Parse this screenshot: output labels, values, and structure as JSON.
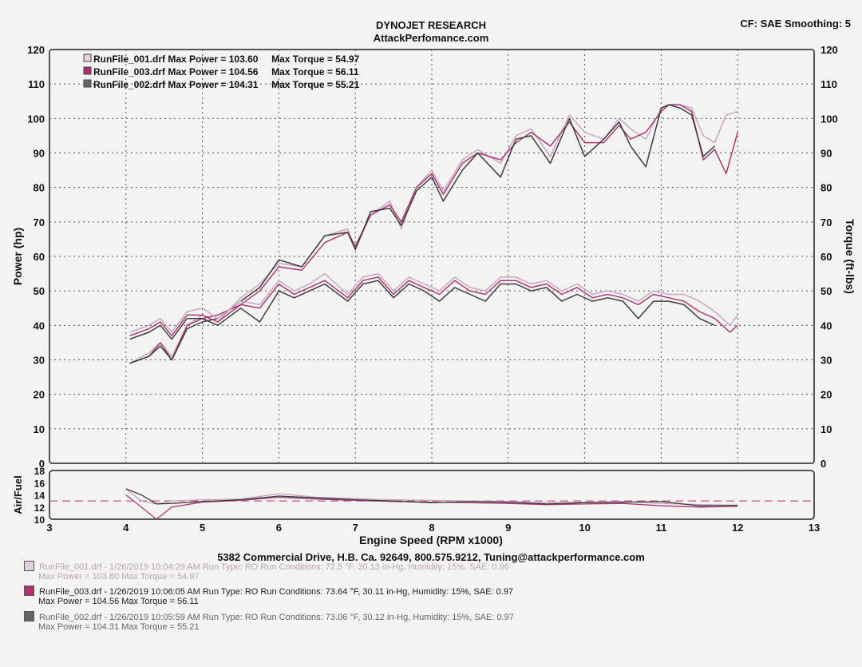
{
  "header": {
    "title": "DYNOJET RESEARCH",
    "subtitle": "AttackPerfomance.com",
    "settings": "CF: SAE  Smoothing: 5"
  },
  "footer": {
    "address": "5382 Commercial Drive, H.B. Ca. 92649, 800.575.9212, Tuning@attackperformance.com"
  },
  "runs": [
    {
      "line1": "RunFile_001.drf - 1/26/2019 10:04:29 AM  Run Type: RO  Run Conditions: 72.5 °F, 30.13 in-Hg,  Humidity:  15%, SAE: 0.96",
      "line2": "Max Power = 103.60  Max Torque = 54.97",
      "color": "#d8b4d0"
    },
    {
      "line1": "RunFile_003.drf - 1/26/2019 10:06:05 AM  Run Type: RO  Run Conditions: 73.64 °F, 30.11 in-Hg,  Humidity:  15%, SAE: 0.97",
      "line2": "Max Power = 104.56  Max Torque = 56.11",
      "color": "#b0306e"
    },
    {
      "line1": "RunFile_002.drf - 1/26/2019 10:05:59 AM  Run Type: RO  Run Conditions: 73.06 °F, 30.12 in-Hg,  Humidity:  15%, SAE: 0.97",
      "line2": "Max Power = 104.31  Max Torque = 55.21",
      "color": "#555555"
    }
  ],
  "chart_data": [
    {
      "type": "line",
      "title": "",
      "xlabel": "Engine Speed (RPM x1000)",
      "ylabel": "Power (hp)",
      "y2label": "Torque (ft-lbs)",
      "xlim": [
        3,
        13
      ],
      "ylim": [
        0,
        120
      ],
      "y2lim": [
        0,
        120
      ],
      "xticks": [
        3,
        4,
        5,
        6,
        7,
        8,
        9,
        10,
        11,
        12,
        13
      ],
      "yticks": [
        0,
        10,
        20,
        30,
        40,
        50,
        60,
        70,
        80,
        90,
        100,
        110,
        120
      ],
      "grid": true,
      "legend_position": "top-left",
      "legend": [
        "RunFile_001.drf Max Power = 103.60     Max Torque = 54.97",
        "RunFile_003.drf Max Power = 104.56     Max Torque = 56.11",
        "RunFile_002.drf Max Power = 104.31     Max Torque = 55.21"
      ],
      "series": [
        {
          "name": "RunFile_001.drf Power",
          "color": "#c9a6c4",
          "x": [
            4.05,
            4.3,
            4.45,
            4.6,
            4.8,
            5.0,
            5.2,
            5.5,
            5.75,
            6.0,
            6.3,
            6.6,
            6.9,
            7.0,
            7.2,
            7.45,
            7.6,
            7.8,
            8.0,
            8.15,
            8.4,
            8.6,
            8.9,
            9.1,
            9.3,
            9.55,
            9.8,
            10.0,
            10.25,
            10.45,
            10.6,
            10.8,
            11.0,
            11.1,
            11.25,
            11.4,
            11.55,
            11.7,
            11.85,
            12.0
          ],
          "y": [
            29,
            32,
            35,
            31,
            40,
            43,
            41,
            48,
            52,
            58,
            57,
            66,
            68,
            62,
            72,
            76,
            68,
            80,
            85,
            79,
            88,
            91,
            87,
            95,
            97,
            89,
            101,
            96,
            94,
            100,
            97,
            94,
            103,
            104,
            104,
            103,
            95,
            93,
            101,
            102
          ]
        },
        {
          "name": "RunFile_003.drf Power",
          "color": "#a83a76",
          "x": [
            4.05,
            4.3,
            4.45,
            4.6,
            4.8,
            5.0,
            5.2,
            5.5,
            5.75,
            6.0,
            6.3,
            6.6,
            6.9,
            7.0,
            7.2,
            7.45,
            7.6,
            7.8,
            8.0,
            8.15,
            8.4,
            8.6,
            8.9,
            9.1,
            9.3,
            9.55,
            9.8,
            10.0,
            10.25,
            10.45,
            10.6,
            10.8,
            11.0,
            11.1,
            11.25,
            11.4,
            11.55,
            11.7,
            11.85,
            12.0
          ],
          "y": [
            29,
            31,
            35,
            30,
            40,
            42,
            43,
            46,
            50,
            57,
            56,
            64,
            67,
            63,
            72,
            75,
            70,
            80,
            84,
            78,
            87,
            90,
            88,
            93,
            96,
            92,
            99,
            93,
            93,
            98,
            94,
            96,
            102,
            104,
            104,
            102,
            88,
            91,
            84,
            96
          ]
        },
        {
          "name": "RunFile_002.drf Power",
          "color": "#3d3d3d",
          "x": [
            4.05,
            4.3,
            4.45,
            4.6,
            4.8,
            5.0,
            5.2,
            5.5,
            5.75,
            6.0,
            6.3,
            6.6,
            6.9,
            7.0,
            7.2,
            7.45,
            7.6,
            7.8,
            8.0,
            8.15,
            8.4,
            8.6,
            8.9,
            9.1,
            9.3,
            9.55,
            9.8,
            10.0,
            10.25,
            10.45,
            10.6,
            10.8,
            11.0,
            11.1,
            11.25,
            11.4,
            11.55,
            11.7
          ],
          "y": [
            29,
            31,
            34,
            30,
            39,
            41,
            42,
            47,
            51,
            59,
            57,
            66,
            67,
            62,
            73,
            74,
            69,
            79,
            83,
            76,
            85,
            90,
            83,
            94,
            95,
            87,
            100,
            89,
            94,
            99,
            92,
            86,
            103,
            104,
            103,
            101,
            89,
            92
          ]
        },
        {
          "name": "RunFile_001.drf Torque",
          "color": "#c9a6c4",
          "x": [
            4.05,
            4.3,
            4.45,
            4.6,
            4.8,
            5.0,
            5.2,
            5.5,
            5.75,
            6.0,
            6.2,
            6.4,
            6.6,
            6.9,
            7.1,
            7.3,
            7.5,
            7.7,
            7.9,
            8.1,
            8.3,
            8.5,
            8.7,
            8.9,
            9.1,
            9.3,
            9.5,
            9.7,
            9.9,
            10.1,
            10.3,
            10.5,
            10.7,
            10.9,
            11.1,
            11.3,
            11.5,
            11.7,
            11.9,
            12.0
          ],
          "y": [
            38,
            40,
            42,
            38,
            44,
            45,
            42,
            47,
            46,
            53,
            50,
            52,
            55,
            49,
            54,
            55,
            50,
            54,
            52,
            50,
            54,
            51,
            50,
            54,
            54,
            52,
            53,
            50,
            52,
            49,
            50,
            49,
            47,
            50,
            49,
            49,
            47,
            44,
            40,
            43
          ]
        },
        {
          "name": "RunFile_003.drf Torque",
          "color": "#a83a76",
          "x": [
            4.05,
            4.3,
            4.45,
            4.6,
            4.8,
            5.0,
            5.2,
            5.5,
            5.75,
            6.0,
            6.2,
            6.4,
            6.6,
            6.9,
            7.1,
            7.3,
            7.5,
            7.7,
            7.9,
            8.1,
            8.3,
            8.5,
            8.7,
            8.9,
            9.1,
            9.3,
            9.5,
            9.7,
            9.9,
            10.1,
            10.3,
            10.5,
            10.7,
            10.9,
            11.1,
            11.3,
            11.5,
            11.7,
            11.9,
            12.0
          ],
          "y": [
            37,
            39,
            41,
            37,
            43,
            43,
            41,
            46,
            45,
            52,
            49,
            51,
            53,
            48,
            53,
            54,
            49,
            53,
            51,
            49,
            53,
            50,
            49,
            53,
            53,
            51,
            52,
            49,
            51,
            48,
            49,
            48,
            46,
            49,
            48,
            47,
            44,
            42,
            38,
            40
          ]
        },
        {
          "name": "RunFile_002.drf Torque",
          "color": "#3d3d3d",
          "x": [
            4.05,
            4.3,
            4.45,
            4.6,
            4.8,
            5.0,
            5.2,
            5.5,
            5.75,
            6.0,
            6.2,
            6.4,
            6.6,
            6.9,
            7.1,
            7.3,
            7.5,
            7.7,
            7.9,
            8.1,
            8.3,
            8.5,
            8.7,
            8.9,
            9.1,
            9.3,
            9.5,
            9.7,
            9.9,
            10.1,
            10.3,
            10.5,
            10.7,
            10.9,
            11.1,
            11.3,
            11.5,
            11.7
          ],
          "y": [
            36,
            38,
            40,
            36,
            42,
            42,
            40,
            45,
            41,
            50,
            48,
            50,
            52,
            47,
            52,
            53,
            48,
            52,
            50,
            47,
            51,
            49,
            47,
            52,
            52,
            50,
            51,
            47,
            49,
            47,
            48,
            47,
            42,
            47,
            47,
            46,
            42,
            40
          ]
        }
      ]
    },
    {
      "type": "line",
      "title": "",
      "xlabel": "Engine Speed (RPM x1000)",
      "ylabel": "Air/Fuel",
      "xlim": [
        3,
        13
      ],
      "ylim": [
        10,
        18
      ],
      "yticks": [
        10,
        12,
        14,
        16,
        18
      ],
      "reference_line": 13,
      "grid": false,
      "series": [
        {
          "name": "RunFile_001.drf Air/Fuel",
          "color": "#c9a6c4",
          "x": [
            4.0,
            4.2,
            4.4,
            4.6,
            5.0,
            5.5,
            6.0,
            6.5,
            7.0,
            7.5,
            8.0,
            8.5,
            9.0,
            9.5,
            10.0,
            10.5,
            11.0,
            11.5,
            12.0
          ],
          "y": [
            15,
            13,
            12.5,
            13,
            13.2,
            13.3,
            14.2,
            13.6,
            13.4,
            13.2,
            13.1,
            13.0,
            12.9,
            12.7,
            12.8,
            12.9,
            12.6,
            12.4,
            12.3
          ]
        },
        {
          "name": "RunFile_003.drf Air/Fuel",
          "color": "#a83a76",
          "x": [
            4.0,
            4.2,
            4.4,
            4.6,
            5.0,
            5.5,
            6.0,
            6.5,
            7.0,
            7.5,
            8.0,
            8.5,
            9.0,
            9.5,
            10.0,
            10.5,
            11.0,
            11.5,
            12.0
          ],
          "y": [
            14,
            12,
            10,
            12,
            12.8,
            13.1,
            13.6,
            13.3,
            13.1,
            12.9,
            12.8,
            12.7,
            12.6,
            12.4,
            12.5,
            12.6,
            12.2,
            12.0,
            12.1
          ]
        },
        {
          "name": "RunFile_002.drf Air/Fuel",
          "color": "#3d3d3d",
          "x": [
            4.0,
            4.2,
            4.4,
            4.6,
            5.0,
            5.5,
            6.0,
            6.5,
            7.0,
            7.5,
            8.0,
            8.5,
            9.0,
            9.5,
            10.0,
            10.5,
            11.0,
            11.5,
            12.0
          ],
          "y": [
            15,
            14,
            12.5,
            12.6,
            12.9,
            13.2,
            13.8,
            13.5,
            13.2,
            13.0,
            12.7,
            12.9,
            12.8,
            12.5,
            12.7,
            12.8,
            12.9,
            12.2,
            12.3
          ]
        }
      ]
    }
  ]
}
